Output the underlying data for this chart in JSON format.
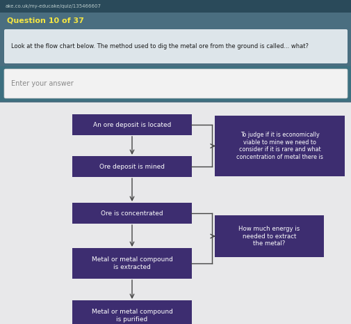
{
  "bg_url_bar": "#2a4a5a",
  "bg_question_area": "#4a6e80",
  "bg_chart": "#e8e8ea",
  "bg_main_boxes": "#3d2d70",
  "bg_side_boxes": "#3d2d70",
  "text_white": "#ffffff",
  "text_question": "#1a1a1a",
  "text_placeholder": "#888888",
  "text_url": "#bbcccc",
  "text_label_color": "#f5e642",
  "url_text": "ake.co.uk/my-educake/quiz/135466607",
  "question_label": "Question 10 of 37",
  "question_text": "Look at the flow chart below. The method used to dig the metal ore from the ground is called... what?",
  "answer_placeholder": "Enter your answer",
  "main_boxes": [
    "An ore deposit is located",
    "Ore deposit is mined",
    "Ore is concentrated",
    "Metal or metal compound\nis extracted",
    "Metal or metal compound\nis purified"
  ],
  "side_box_1": "To judge if it is economically\nviable to mine we need to\nconsider if it is rare and what\nconcentration of metal there is",
  "side_box_2": "How much energy is\nneeded to extract\nthe metal?",
  "figsize": [
    5.06,
    4.65
  ],
  "dpi": 100
}
